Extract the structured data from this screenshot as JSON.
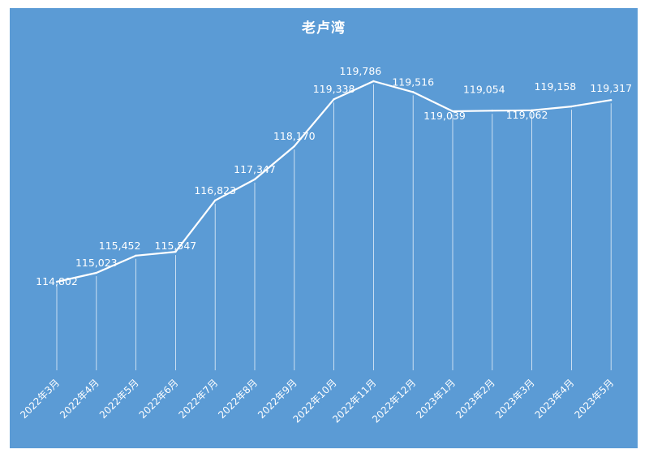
{
  "chart_data": {
    "type": "line",
    "title": "老卢湾",
    "categories": [
      "2022年3月",
      "2022年4月",
      "2022年5月",
      "2022年6月",
      "2022年7月",
      "2022年8月",
      "2022年9月",
      "2022年10月",
      "2022年11月",
      "2022年12月",
      "2023年1月",
      "2023年2月",
      "2023年3月",
      "2023年4月",
      "2023年5月"
    ],
    "series": [
      {
        "values": [
          114802,
          115023,
          115452,
          115547,
          116823,
          117347,
          118170,
          119338,
          119786,
          119516,
          119039,
          119054,
          119062,
          119158,
          119317
        ]
      }
    ],
    "data_labels": [
      "114,802",
      "115,023",
      "115,452",
      "115,547",
      "116,823",
      "117,347",
      "118,170",
      "119,338",
      "119,786",
      "119,516",
      "119,039",
      "119,054",
      "119,062",
      "119,158",
      "119,317"
    ],
    "drop_lines": true,
    "grid": false,
    "legend": "none",
    "colors": {
      "background": "#5b9bd5",
      "line": "#ffffff",
      "text": "#ffffff"
    }
  }
}
